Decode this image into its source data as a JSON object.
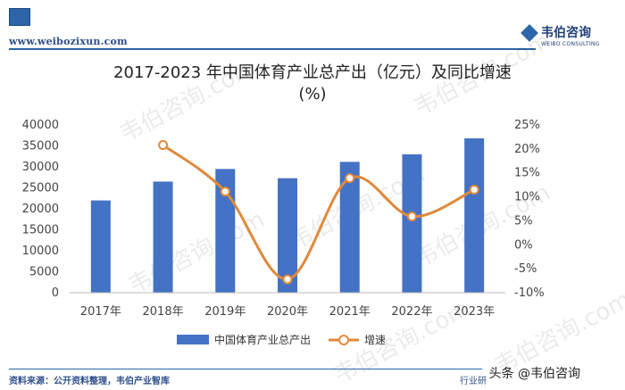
{
  "header": {
    "url": "www.weibozixun.com",
    "brand_name": "韦伯咨询",
    "brand_sub": "WEIBO CONSULTING"
  },
  "title_line1": "2017-2023 年中国体育产业总产出（亿元）及同比增速",
  "title_line2": "(%)",
  "watermark": "韦伯咨询.com",
  "chart_data": {
    "type": "bar",
    "categories": [
      "2017年",
      "2018年",
      "2019年",
      "2020年",
      "2021年",
      "2022年",
      "2023年"
    ],
    "series": [
      {
        "name": "中国体育产业总产出",
        "type": "bar",
        "axis": "left",
        "color": "#4472c4",
        "values": [
          22000,
          26500,
          29500,
          27300,
          31200,
          33000,
          36800
        ]
      },
      {
        "name": "增速",
        "type": "line",
        "axis": "right",
        "color": "#e08a3c",
        "values": [
          null,
          20.8,
          11.1,
          -7.2,
          13.9,
          5.9,
          11.5
        ]
      }
    ],
    "ylim_left": [
      0,
      40000
    ],
    "yticks_left": [
      "0",
      "5000",
      "10000",
      "15000",
      "20000",
      "25000",
      "30000",
      "35000",
      "40000"
    ],
    "ylim_right": [
      -10,
      25
    ],
    "yticks_right": [
      "-10%",
      "-5%",
      "0%",
      "5%",
      "10%",
      "15%",
      "20%",
      "25%"
    ],
    "legend_position": "bottom"
  },
  "footer": {
    "source": "资料来源：公开资料整理，韦伯产业智库",
    "tag": "行业研",
    "right_text": "头条 @韦伯咨询"
  }
}
